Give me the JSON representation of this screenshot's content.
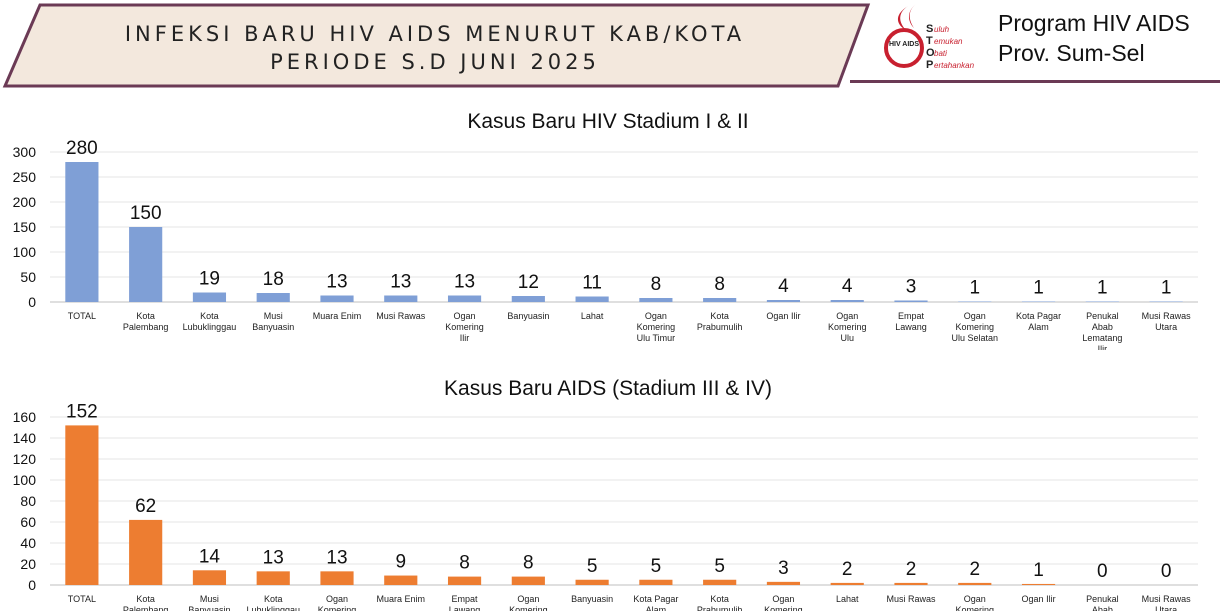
{
  "header": {
    "title_line1": "INFEKSI BARU HIV AIDS MENURUT KAB/KOTA",
    "title_line2": "PERIODE S.D JUNI 2025",
    "program_line1": "Program HIV AIDS",
    "program_line2": "Prov. Sum-Sel",
    "logo": {
      "letters": [
        "S",
        "T",
        "O",
        "P"
      ],
      "words": [
        "uluh",
        "emukan",
        "bati",
        "ertahankan"
      ],
      "center_text": "HIV AIDS"
    }
  },
  "colors": {
    "hiv_bar": "#7f9fd6",
    "aids_bar": "#ed7d31",
    "banner_fill": "#f3e8dd",
    "banner_border": "#6b3a55",
    "logo_red": "#c8202f"
  },
  "chart_data": [
    {
      "type": "bar",
      "title": "Kasus Baru HIV Stadium I & II",
      "categories": [
        "TOTAL",
        "Kota Palembang",
        "Kota Lubuklinggau",
        "Musi Banyuasin",
        "Muara Enim",
        "Musi Rawas",
        "Ogan Komering Ilir",
        "Banyuasin",
        "Lahat",
        "Ogan Komering Ulu Timur",
        "Kota Prabumulih",
        "Ogan Ilir",
        "Ogan Komering Ulu",
        "Empat Lawang",
        "Ogan Komering Ulu Selatan",
        "Kota Pagar Alam",
        "Penukal Abab Lematang Ilir",
        "Musi Rawas Utara"
      ],
      "values": [
        280,
        150,
        19,
        18,
        13,
        13,
        13,
        12,
        11,
        8,
        8,
        4,
        4,
        3,
        1,
        1,
        1,
        1
      ],
      "ylim": [
        0,
        300
      ],
      "yticks": [
        0,
        50,
        100,
        150,
        200,
        250,
        300
      ],
      "xlabel": "",
      "ylabel": ""
    },
    {
      "type": "bar",
      "title": "Kasus Baru AIDS (Stadium III & IV)",
      "categories": [
        "TOTAL",
        "Kota Palembang",
        "Musi Banyuasin",
        "Kota Lubuklinggau",
        "Ogan Komering Ulu",
        "Muara Enim",
        "Empat Lawang",
        "Ogan Komering Ilir",
        "Banyuasin",
        "Kota Pagar Alam",
        "Kota Prabumulih",
        "Ogan Komering Ulu",
        "Lahat",
        "Musi Rawas",
        "Ogan Komering Ulu",
        "Ogan Ilir",
        "Penukal Abab Lematang Ilir",
        "Musi Rawas Utara"
      ],
      "values": [
        152,
        62,
        14,
        13,
        13,
        9,
        8,
        8,
        5,
        5,
        5,
        3,
        2,
        2,
        2,
        1,
        0,
        0
      ],
      "ylim": [
        0,
        160
      ],
      "yticks": [
        0,
        20,
        40,
        60,
        80,
        100,
        120,
        140,
        160
      ],
      "xlabel": "",
      "ylabel": ""
    }
  ]
}
